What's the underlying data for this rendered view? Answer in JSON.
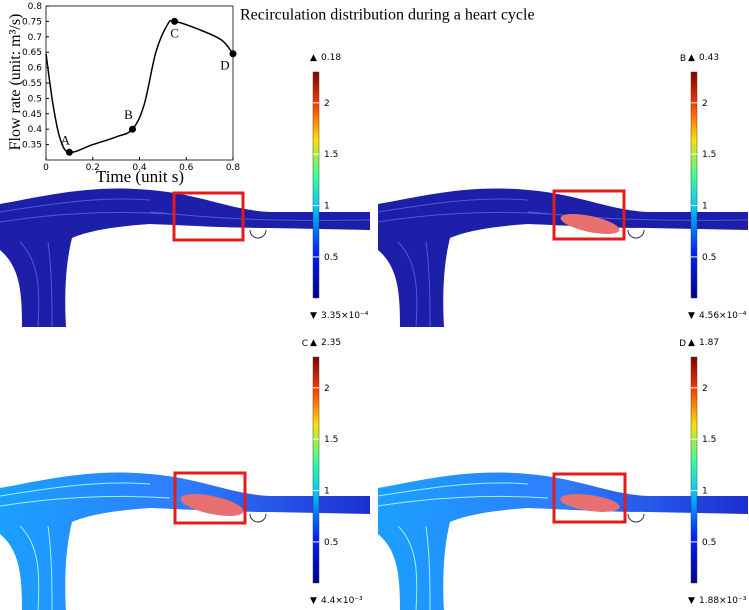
{
  "chart_data": {
    "type": "line",
    "title": "Recirculation distribution during a heart cycle",
    "xlabel": "Time (unit  s)",
    "ylabel": "Flow rate (unit: m³/s)",
    "x": [
      0,
      0.03,
      0.06,
      0.1,
      0.2,
      0.3,
      0.37,
      0.42,
      0.47,
      0.52,
      0.55,
      0.65,
      0.75,
      0.8
    ],
    "series": [
      {
        "color": "#000000",
        "values": [
          0.645,
          0.48,
          0.37,
          0.325,
          0.35,
          0.375,
          0.4,
          0.48,
          0.65,
          0.74,
          0.75,
          0.725,
          0.69,
          0.645
        ]
      }
    ],
    "points": {
      "labels": [
        "A",
        "B",
        "C",
        "D"
      ],
      "x": [
        0.1,
        0.37,
        0.55,
        0.8
      ],
      "y": [
        0.325,
        0.4,
        0.75,
        0.645
      ]
    },
    "xlim": [
      0,
      0.8
    ],
    "xticks": [
      0,
      0.2,
      0.4,
      0.6,
      0.8
    ],
    "ylim": [
      0.3,
      0.8
    ],
    "yticks": [
      0.35,
      0.4,
      0.45,
      0.5,
      0.55,
      0.6,
      0.65,
      0.7,
      0.75,
      0.8
    ]
  },
  "colorbar": {
    "lim": [
      0.1,
      2.3
    ],
    "ticks": [
      0.5,
      1,
      1.5,
      2
    ]
  },
  "panels": [
    {
      "max": "0.18",
      "min": "3.35×10⁻⁴"
    },
    {
      "label": "B",
      "max": "0.43",
      "min": "4.56×10⁻⁴"
    },
    {
      "label": "C",
      "max": "2.35",
      "min": "4.4×10⁻³"
    },
    {
      "label": "D",
      "max": "1.87",
      "min": "1.88×10⁻³"
    }
  ]
}
